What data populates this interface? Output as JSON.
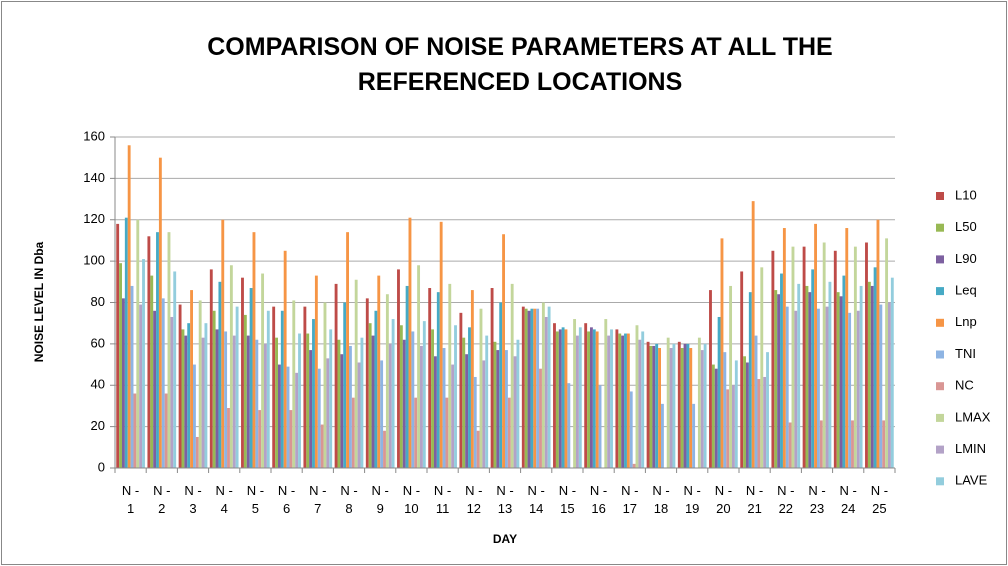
{
  "chart_data": {
    "type": "bar",
    "title": "COMPARISON OF NOISE PARAMETERS AT ALL THE REFERENCED LOCATIONS",
    "y_label": "NOISE LEVEL IN Dba",
    "x_label": "DAY",
    "categories": [
      "N - 1",
      "N - 2",
      "N - 3",
      "N - 4",
      "N - 5",
      "N - 6",
      "N - 7",
      "N - 8",
      "N - 9",
      "N - 10",
      "N - 11",
      "N - 12",
      "N - 13",
      "N - 14",
      "N - 15",
      "N - 16",
      "N - 17",
      "N - 18",
      "N - 19",
      "N - 20",
      "N - 21",
      "N - 22",
      "N - 23",
      "N - 24",
      "N - 25"
    ],
    "ylim": [
      0,
      160
    ],
    "yticks": [
      0,
      20,
      40,
      60,
      80,
      100,
      120,
      140,
      160
    ],
    "grid": true,
    "legend": "right",
    "series": [
      {
        "name": "L10",
        "color": "#be4b48",
        "values": [
          118,
          112,
          79,
          96,
          92,
          78,
          78,
          89,
          82,
          96,
          87,
          75,
          87,
          78,
          70,
          70,
          67,
          61,
          61,
          86,
          95,
          105,
          107,
          105,
          109
        ]
      },
      {
        "name": "L50",
        "color": "#98b954",
        "values": [
          99,
          93,
          67,
          76,
          74,
          63,
          65,
          62,
          70,
          69,
          67,
          63,
          61,
          77,
          66,
          66,
          65,
          59,
          58,
          50,
          54,
          86,
          88,
          85,
          90
        ]
      },
      {
        "name": "L90",
        "color": "#7d60a0",
        "values": [
          82,
          76,
          64,
          67,
          64,
          50,
          57,
          55,
          64,
          62,
          54,
          55,
          57,
          76,
          67,
          68,
          64,
          59,
          60,
          48,
          51,
          84,
          85,
          83,
          88
        ]
      },
      {
        "name": "Leq",
        "color": "#46aac5",
        "values": [
          121,
          114,
          70,
          90,
          87,
          76,
          72,
          80,
          76,
          88,
          85,
          68,
          80,
          77,
          68,
          67,
          65,
          60,
          60,
          73,
          85,
          94,
          96,
          93,
          97
        ]
      },
      {
        "name": "Lnp",
        "color": "#f69545",
        "values": [
          156,
          150,
          86,
          120,
          114,
          105,
          93,
          114,
          93,
          121,
          119,
          86,
          113,
          77,
          67,
          66,
          65,
          58,
          58,
          111,
          129,
          116,
          118,
          116,
          120
        ]
      },
      {
        "name": "TNI",
        "color": "#8eb4e3",
        "values": [
          88,
          82,
          50,
          66,
          62,
          49,
          48,
          59,
          52,
          66,
          58,
          44,
          57,
          77,
          41,
          40,
          37,
          31,
          31,
          56,
          64,
          78,
          77,
          75,
          79
        ]
      },
      {
        "name": "NC",
        "color": "#d99694",
        "values": [
          36,
          36,
          15,
          29,
          28,
          28,
          21,
          34,
          18,
          34,
          34,
          18,
          34,
          48,
          0,
          0,
          2,
          0,
          0,
          38,
          43,
          22,
          23,
          23,
          23
        ]
      },
      {
        "name": "LMAX",
        "color": "#c3d69b",
        "values": [
          120,
          114,
          81,
          98,
          94,
          81,
          80,
          91,
          84,
          98,
          89,
          77,
          89,
          80,
          72,
          72,
          69,
          63,
          63,
          88,
          97,
          107,
          109,
          107,
          111
        ]
      },
      {
        "name": "LMIN",
        "color": "#b3a2c7",
        "values": [
          79,
          73,
          63,
          64,
          60,
          46,
          53,
          51,
          60,
          59,
          50,
          52,
          54,
          73,
          64,
          64,
          62,
          58,
          57,
          40,
          44,
          76,
          78,
          76,
          80
        ]
      },
      {
        "name": "LAVE",
        "color": "#93cddd",
        "values": [
          101,
          95,
          70,
          78,
          76,
          65,
          67,
          63,
          72,
          71,
          69,
          64,
          62,
          78,
          68,
          67,
          66,
          60,
          60,
          52,
          56,
          89,
          90,
          88,
          92
        ]
      }
    ]
  }
}
